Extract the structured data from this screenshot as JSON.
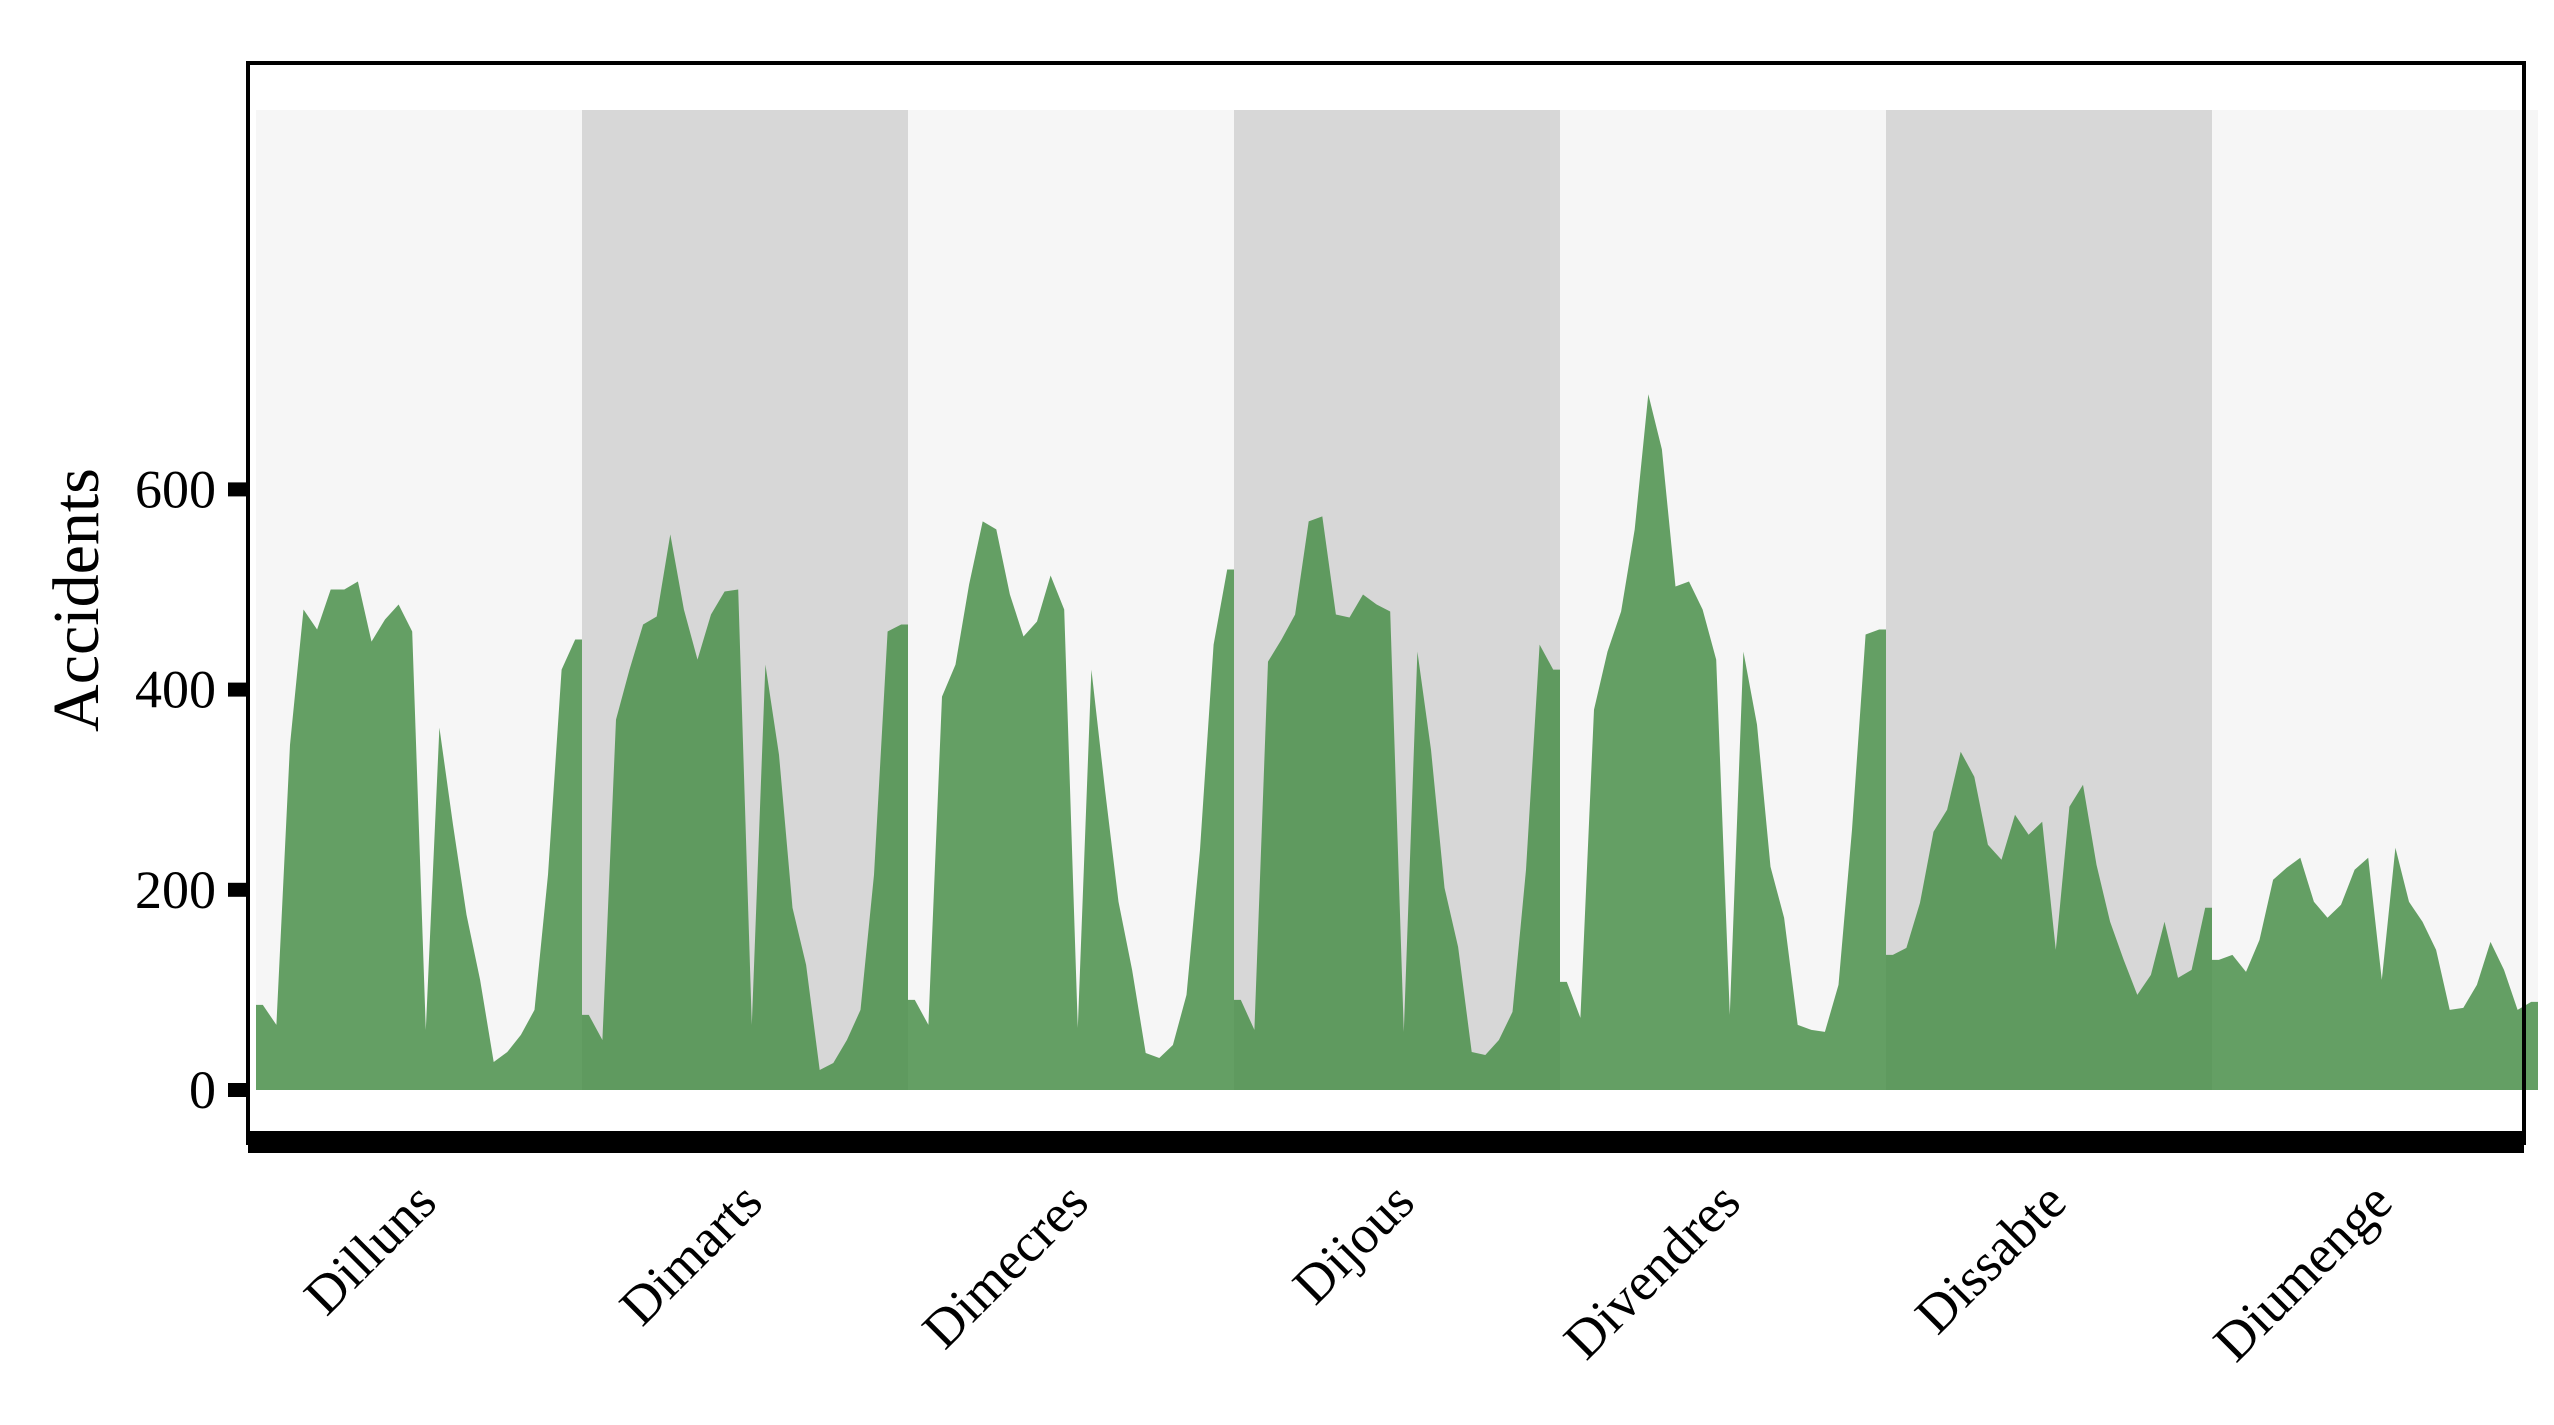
{
  "chart_data": {
    "type": "area",
    "ylabel": "Accidents",
    "xlabel": "",
    "ylim": [
      -30,
      700
    ],
    "yticks": [
      0,
      200,
      400,
      600
    ],
    "ytick_labels": [
      "0",
      "200",
      "400",
      "600"
    ],
    "grid": false,
    "legend": "none",
    "fill_color": "#4a8f4a",
    "band_colors": [
      "#f6f6f6",
      "#d7d7d7"
    ],
    "days": [
      {
        "label": "Dilluns",
        "values": [
          85,
          65,
          345,
          480,
          460,
          500,
          500,
          508,
          448,
          470,
          485,
          458,
          60,
          362,
          265,
          175,
          110,
          28,
          38,
          55,
          80,
          215,
          420,
          450
        ]
      },
      {
        "label": "Dimarts",
        "values": [
          75,
          50,
          370,
          420,
          465,
          473,
          555,
          480,
          430,
          475,
          498,
          500,
          65,
          425,
          335,
          182,
          125,
          20,
          27,
          50,
          80,
          215,
          458,
          465
        ]
      },
      {
        "label": "Dimecres",
        "values": [
          90,
          65,
          393,
          425,
          505,
          568,
          560,
          495,
          453,
          468,
          514,
          480,
          62,
          420,
          300,
          188,
          120,
          37,
          32,
          45,
          95,
          240,
          445,
          520
        ]
      },
      {
        "label": "Dijous",
        "values": [
          90,
          60,
          428,
          450,
          475,
          568,
          573,
          475,
          472,
          495,
          485,
          478,
          58,
          438,
          340,
          202,
          143,
          38,
          35,
          50,
          78,
          220,
          445,
          420
        ]
      },
      {
        "label": "Divendres",
        "values": [
          108,
          72,
          380,
          438,
          478,
          560,
          695,
          640,
          503,
          508,
          480,
          430,
          75,
          438,
          365,
          223,
          172,
          65,
          60,
          58,
          105,
          260,
          455,
          460
        ]
      },
      {
        "label": "Dissabte",
        "values": [
          135,
          142,
          187,
          258,
          280,
          338,
          313,
          245,
          230,
          275,
          255,
          268,
          140,
          283,
          305,
          225,
          168,
          130,
          95,
          115,
          168,
          112,
          120,
          182
        ]
      },
      {
        "label": "Diumenge",
        "values": [
          130,
          135,
          118,
          150,
          210,
          222,
          232,
          188,
          172,
          185,
          220,
          232,
          110,
          242,
          188,
          168,
          140,
          80,
          82,
          105,
          148,
          120,
          80,
          88
        ]
      }
    ]
  }
}
